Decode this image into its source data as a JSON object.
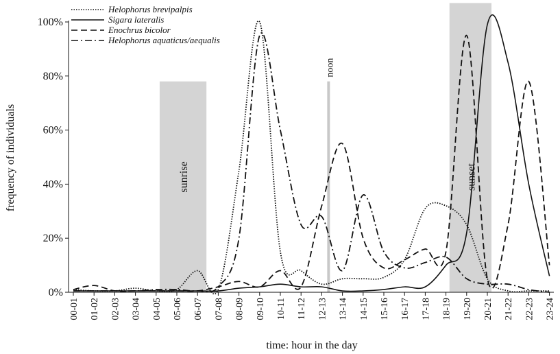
{
  "chart_data": {
    "type": "line",
    "x_label": "time: hour in the day",
    "y_label": "frequency of individuals",
    "categories": [
      "00-01",
      "01-02",
      "02-03",
      "03-04",
      "04-05",
      "05-06",
      "06-07",
      "07-08",
      "08-09",
      "09-10",
      "10-11",
      "11-12",
      "12-13",
      "13-14",
      "14-15",
      "15-16",
      "16-17",
      "17-18",
      "18-19",
      "19-20",
      "20-21",
      "21-22",
      "22-23",
      "23-24"
    ],
    "ylim": [
      0,
      100
    ],
    "yticks": [
      {
        "value": 0,
        "label": "0%"
      },
      {
        "value": 20,
        "label": "20%"
      },
      {
        "value": 40,
        "label": "40%"
      },
      {
        "value": 60,
        "label": "60%"
      },
      {
        "value": 80,
        "label": "80%"
      },
      {
        "value": 100,
        "label": "100%"
      }
    ],
    "series": [
      {
        "name": "Helophorus brevipalpis",
        "color": "#111111",
        "dash": "1.5,2",
        "values": [
          1,
          0.5,
          0.5,
          1.5,
          0.5,
          1,
          8,
          1,
          45,
          100,
          15,
          8,
          3,
          5,
          5,
          5.5,
          12,
          31,
          32,
          25,
          5,
          0.5,
          0.5,
          0.5
        ]
      },
      {
        "name": "Sigara lateralis",
        "color": "#111111",
        "dash": "none",
        "values": [
          0.5,
          0.5,
          0.5,
          0.5,
          0.5,
          0.5,
          0.5,
          0.5,
          1.5,
          2,
          3,
          2,
          2,
          0.5,
          0.5,
          1,
          2,
          2,
          10,
          22,
          99,
          85,
          40,
          6
        ]
      },
      {
        "name": "Enochrus bicolor",
        "color": "#111111",
        "dash": "9,5",
        "values": [
          1,
          2.5,
          0.5,
          0.5,
          0.5,
          0.5,
          0.5,
          2,
          4,
          2,
          8,
          2,
          32,
          55,
          20,
          9,
          12,
          16,
          15,
          95,
          5,
          25,
          78,
          10
        ]
      },
      {
        "name": "Helophorus aquaticus/aequalis",
        "color": "#111111",
        "dash": "10,4,2,4",
        "values": [
          0.5,
          0.5,
          0.5,
          0.5,
          1,
          1,
          0.5,
          2,
          20,
          95,
          60,
          25,
          28,
          8,
          36,
          15,
          9,
          11,
          13,
          5,
          3,
          3,
          1,
          0
        ]
      }
    ],
    "annotations": [
      {
        "label": "sunrise",
        "x_start": 4.17,
        "x_end": 6.43,
        "y_top": 78,
        "color": "#d4d4d4"
      },
      {
        "label": "sunset",
        "x_start": 18.17,
        "x_end": 20.2,
        "y_top": 107,
        "color": "#d4d4d4"
      },
      {
        "label": "noon",
        "x": 12.33,
        "y_top": 78,
        "color": "#c8c8c8"
      }
    ]
  }
}
